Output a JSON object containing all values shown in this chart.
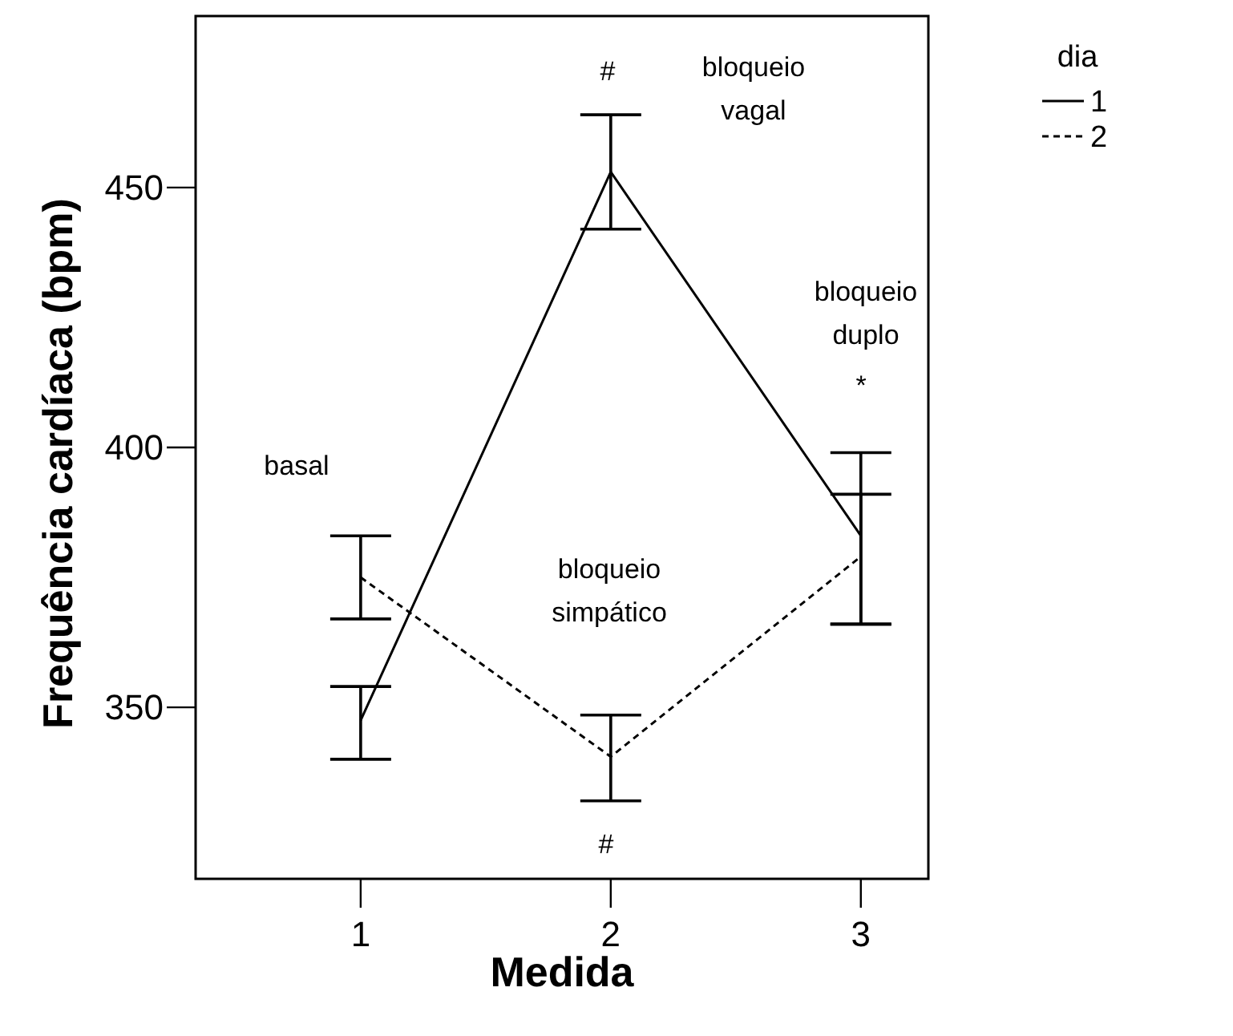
{
  "chart_data": {
    "type": "line",
    "xlabel": "Medida",
    "ylabel": "Frequência cardíaca (bpm)",
    "legend_title": "dia",
    "legend": "top right",
    "marker": "none",
    "x": [
      1,
      2,
      3
    ],
    "xlim": [
      0.34,
      3.27
    ],
    "xticks": [
      1,
      2,
      3
    ],
    "ylim": [
      317,
      483
    ],
    "yticks": [
      350,
      400,
      450
    ],
    "grid": false,
    "series": [
      {
        "name": "1",
        "color": "#000000",
        "line_style": "solid",
        "values": [
          347.5,
          453,
          383
        ],
        "errors": [
          [
            340,
            354
          ],
          [
            442,
            464
          ],
          [
            366,
            399
          ]
        ]
      },
      {
        "name": "2",
        "color": "#000000",
        "line_style": "dashed",
        "values": [
          375,
          340.5,
          379
        ],
        "errors": [
          [
            367,
            383
          ],
          [
            332,
            348.5
          ],
          [
            366,
            391
          ]
        ]
      }
    ],
    "annotations": [
      "#",
      "bloqueio\nvagal",
      "bloqueio\nduplo",
      "*",
      "basal",
      "bloqueio\nsimpático",
      "#"
    ]
  }
}
